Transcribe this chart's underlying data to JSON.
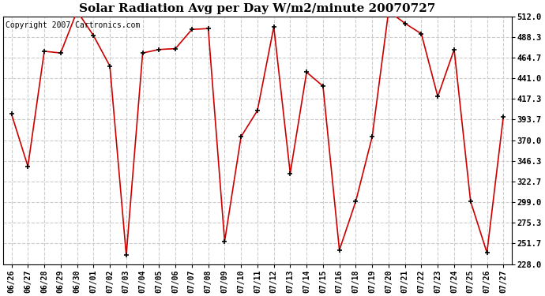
{
  "title": "Solar Radiation Avg per Day W/m2/minute 20070727",
  "copyright": "Copyright 2007 Cartronics.com",
  "dates": [
    "06/26",
    "06/27",
    "06/28",
    "06/29",
    "06/30",
    "07/01",
    "07/02",
    "07/03",
    "07/04",
    "07/05",
    "07/06",
    "07/07",
    "07/08",
    "07/09",
    "07/10",
    "07/11",
    "07/12",
    "07/13",
    "07/14",
    "07/15",
    "07/16",
    "07/18",
    "07/19",
    "07/20",
    "07/21",
    "07/22",
    "07/23",
    "07/24",
    "07/25",
    "07/26",
    "07/27"
  ],
  "values": [
    400,
    340,
    472,
    470,
    518,
    490,
    455,
    238,
    470,
    474,
    475,
    497,
    498,
    254,
    374,
    404,
    500,
    332,
    448,
    432,
    244,
    300,
    374,
    518,
    504,
    492,
    420,
    474,
    300,
    241,
    397
  ],
  "ylim_min": 228.0,
  "ylim_max": 512.0,
  "yticks": [
    228.0,
    251.7,
    275.3,
    299.0,
    322.7,
    346.3,
    370.0,
    393.7,
    417.3,
    441.0,
    464.7,
    488.3,
    512.0
  ],
  "line_color": "#cc0000",
  "marker": "+",
  "marker_color": "#000000",
  "bg_color": "#ffffff",
  "grid_color": "#cccccc",
  "title_fontsize": 11,
  "copyright_fontsize": 7
}
